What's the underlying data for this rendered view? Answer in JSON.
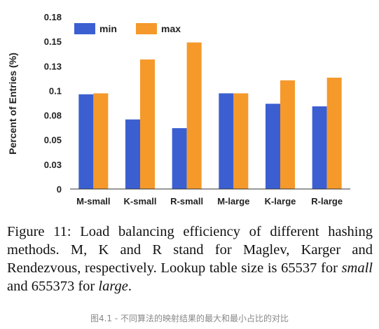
{
  "chart_data": {
    "type": "bar",
    "title": "",
    "xlabel": "",
    "ylabel": "Percent of Entries (%)",
    "ylim": [
      0,
      0.18
    ],
    "yticks": [
      "0",
      "0.03",
      "0.05",
      "0.08",
      "0.1",
      "0.13",
      "0.15",
      "0.18"
    ],
    "categories": [
      "M-small",
      "K-small",
      "R-small",
      "M-large",
      "K-large",
      "R-large"
    ],
    "series": [
      {
        "name": "min",
        "color": "#3B5FD1",
        "values": [
          0.099,
          0.0727,
          0.0636,
          0.1,
          0.0891,
          0.0864
        ]
      },
      {
        "name": "max",
        "color": "#F5992B",
        "values": [
          0.1,
          0.1354,
          0.1532,
          0.1,
          0.1136,
          0.1164
        ]
      }
    ],
    "grid": false,
    "legend": "top-left"
  },
  "caption": {
    "part1": "Figure 11: Load balancing efficiency of different hashing methods. M, K and R stand for Maglev, Karger and Rendezvous, respectively. Lookup table size is 65537 for ",
    "em1": "small",
    "part2": " and 655373 for ",
    "em2": "large",
    "part3": "."
  },
  "footnote": "图4.1 - 不同算法的映射结果的最大和最小占比的对比"
}
